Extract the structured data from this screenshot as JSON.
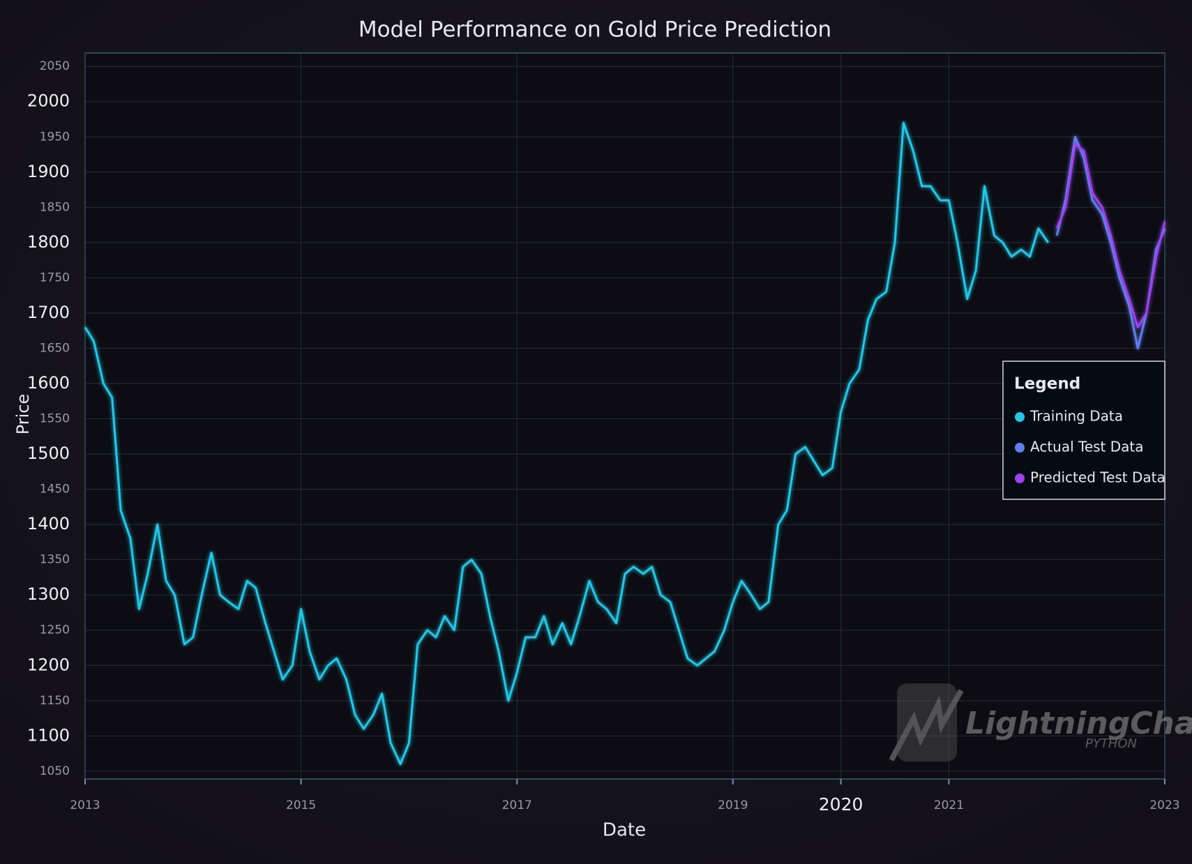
{
  "chart_data": {
    "type": "line",
    "title": "Model Performance on Gold Price Prediction",
    "x_label": "Date",
    "y_label": "Price",
    "xlim": [
      2013,
      2023
    ],
    "xticks": [
      2013,
      2015,
      2017,
      2019,
      2020,
      2021,
      2023
    ],
    "ylim": [
      1039,
      2069
    ],
    "yticks": [
      1050,
      1100,
      1150,
      1200,
      1250,
      1300,
      1350,
      1400,
      1450,
      1500,
      1550,
      1600,
      1650,
      1700,
      1750,
      1800,
      1850,
      1900,
      1950,
      2000,
      2050
    ],
    "grid": true,
    "legend_title": "Legend",
    "legend_position": "right",
    "watermark": "LightningChart",
    "watermark_sub": "PYTHON",
    "series": [
      {
        "name": "Training Data",
        "color": "#22c8e8",
        "x": [
          2013.0,
          2013.08,
          2013.17,
          2013.25,
          2013.33,
          2013.42,
          2013.5,
          2013.58,
          2013.67,
          2013.75,
          2013.83,
          2013.92,
          2014.0,
          2014.08,
          2014.17,
          2014.25,
          2014.33,
          2014.42,
          2014.5,
          2014.58,
          2014.67,
          2014.75,
          2014.83,
          2014.92,
          2015.0,
          2015.08,
          2015.17,
          2015.25,
          2015.33,
          2015.42,
          2015.5,
          2015.58,
          2015.67,
          2015.75,
          2015.83,
          2015.92,
          2016.0,
          2016.08,
          2016.17,
          2016.25,
          2016.33,
          2016.42,
          2016.5,
          2016.58,
          2016.67,
          2016.75,
          2016.83,
          2016.92,
          2017.0,
          2017.08,
          2017.17,
          2017.25,
          2017.33,
          2017.42,
          2017.5,
          2017.58,
          2017.67,
          2017.75,
          2017.83,
          2017.92,
          2018.0,
          2018.08,
          2018.17,
          2018.25,
          2018.33,
          2018.42,
          2018.5,
          2018.58,
          2018.67,
          2018.75,
          2018.83,
          2018.92,
          2019.0,
          2019.08,
          2019.17,
          2019.25,
          2019.33,
          2019.42,
          2019.5,
          2019.58,
          2019.67,
          2019.75,
          2019.83,
          2019.92,
          2020.0,
          2020.08,
          2020.17,
          2020.25,
          2020.33,
          2020.42,
          2020.5,
          2020.58,
          2020.67,
          2020.75,
          2020.83,
          2020.92,
          2021.0,
          2021.08,
          2021.17,
          2021.25,
          2021.33,
          2021.42,
          2021.5,
          2021.58,
          2021.67,
          2021.75,
          2021.83,
          2021.92
        ],
        "values": [
          1680,
          1660,
          1600,
          1580,
          1420,
          1380,
          1280,
          1330,
          1400,
          1320,
          1300,
          1230,
          1240,
          1300,
          1360,
          1300,
          1290,
          1280,
          1320,
          1310,
          1260,
          1220,
          1180,
          1200,
          1280,
          1220,
          1180,
          1200,
          1210,
          1180,
          1130,
          1110,
          1130,
          1160,
          1090,
          1060,
          1090,
          1230,
          1250,
          1240,
          1270,
          1250,
          1340,
          1350,
          1330,
          1270,
          1220,
          1150,
          1190,
          1240,
          1240,
          1270,
          1230,
          1260,
          1230,
          1270,
          1320,
          1290,
          1280,
          1260,
          1330,
          1340,
          1330,
          1340,
          1300,
          1290,
          1250,
          1210,
          1200,
          1210,
          1220,
          1250,
          1290,
          1320,
          1300,
          1280,
          1290,
          1400,
          1420,
          1500,
          1510,
          1490,
          1470,
          1480,
          1560,
          1600,
          1620,
          1690,
          1720,
          1730,
          1800,
          1970,
          1930,
          1880,
          1880,
          1860,
          1860,
          1800,
          1720,
          1760,
          1880,
          1810,
          1800,
          1780,
          1790,
          1780,
          1820,
          1800
        ]
      },
      {
        "name": "Actual Test Data",
        "color": "#5f7ff0",
        "x": [
          2022.0,
          2022.08,
          2022.17,
          2022.25,
          2022.33,
          2022.42,
          2022.5,
          2022.58,
          2022.67,
          2022.75,
          2022.83,
          2022.92,
          2023.0
        ],
        "values": [
          1810,
          1860,
          1950,
          1920,
          1860,
          1840,
          1800,
          1750,
          1710,
          1650,
          1700,
          1790,
          1820
        ]
      },
      {
        "name": "Predicted Test Data",
        "color": "#a040f0",
        "x": [
          2022.0,
          2022.08,
          2022.17,
          2022.25,
          2022.33,
          2022.42,
          2022.5,
          2022.58,
          2022.67,
          2022.75,
          2022.83,
          2022.92,
          2023.0
        ],
        "values": [
          1820,
          1850,
          1940,
          1930,
          1870,
          1850,
          1810,
          1760,
          1720,
          1680,
          1700,
          1780,
          1830
        ]
      }
    ]
  }
}
